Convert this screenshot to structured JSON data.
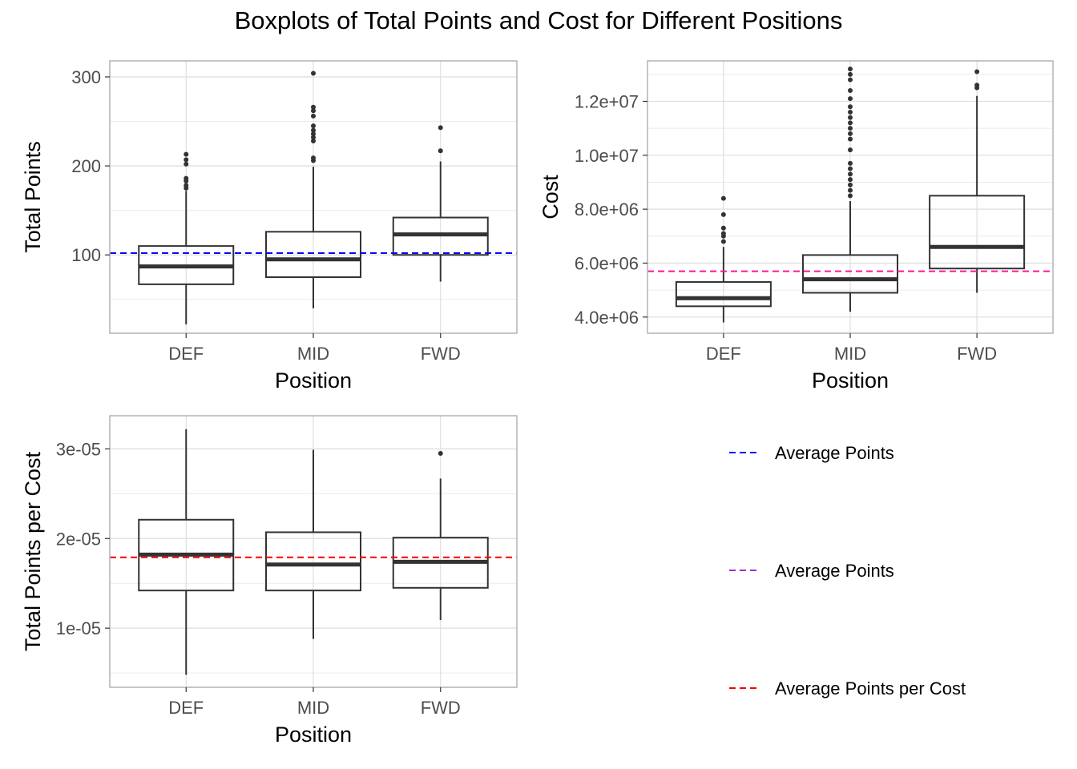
{
  "title": "Boxplots of Total Points and Cost for Different Positions",
  "chart_data": [
    {
      "type": "boxplot",
      "categories": [
        "DEF",
        "MID",
        "FWD"
      ],
      "xlabel": "Position",
      "ylabel": "Total Points",
      "ylim": [
        12,
        318
      ],
      "yticks": [
        100,
        200,
        300
      ],
      "ytick_labels": [
        "100",
        "200",
        "300"
      ],
      "minor_gridlines": [
        50,
        150,
        250
      ],
      "boxes": [
        {
          "category": "DEF",
          "whisker_low": 22,
          "q1": 67,
          "median": 87,
          "q3": 110,
          "whisker_high": 172,
          "outliers": [
            175,
            178,
            183,
            186,
            202,
            207,
            213
          ]
        },
        {
          "category": "MID",
          "whisker_low": 40,
          "q1": 75,
          "median": 95,
          "q3": 126,
          "whisker_high": 199,
          "outliers": [
            206,
            209,
            228,
            232,
            236,
            240,
            245,
            256,
            262,
            266,
            304
          ]
        },
        {
          "category": "FWD",
          "whisker_low": 70,
          "q1": 100,
          "median": 123,
          "q3": 142,
          "whisker_high": 205,
          "outliers": [
            217,
            243
          ]
        }
      ],
      "reference_line": {
        "value": 102,
        "color": "#0000ff",
        "legend": "Average Points"
      }
    },
    {
      "type": "boxplot",
      "categories": [
        "DEF",
        "MID",
        "FWD"
      ],
      "xlabel": "Position",
      "ylabel": "Cost",
      "ylim": [
        3400000,
        13500000
      ],
      "yticks": [
        4000000,
        6000000,
        8000000,
        10000000,
        12000000
      ],
      "ytick_labels": [
        "4.0e+06",
        "6.0e+06",
        "8.0e+06",
        "1.0e+07",
        "1.2e+07"
      ],
      "minor_gridlines": [
        5000000,
        7000000,
        9000000,
        11000000,
        13000000
      ],
      "boxes": [
        {
          "category": "DEF",
          "whisker_low": 3800000,
          "q1": 4400000,
          "median": 4700000,
          "q3": 5300000,
          "whisker_high": 6600000,
          "outliers": [
            6800000,
            7000000,
            7100000,
            7300000,
            7800000,
            8400000
          ]
        },
        {
          "category": "MID",
          "whisker_low": 4200000,
          "q1": 4900000,
          "median": 5400000,
          "q3": 6300000,
          "whisker_high": 8300000,
          "outliers": [
            8500000,
            8700000,
            8900000,
            9100000,
            9300000,
            9500000,
            9700000,
            10200000,
            10600000,
            10800000,
            11000000,
            11200000,
            11400000,
            11600000,
            11800000,
            12100000,
            12400000,
            12800000,
            13000000,
            13200000
          ]
        },
        {
          "category": "FWD",
          "whisker_low": 4900000,
          "q1": 5800000,
          "median": 6600000,
          "q3": 8500000,
          "whisker_high": 12200000,
          "outliers": [
            12500000,
            12600000,
            13100000
          ]
        }
      ],
      "reference_line": {
        "value": 5700000,
        "color": "#ff1493",
        "legend": "Average Points"
      }
    },
    {
      "type": "boxplot",
      "categories": [
        "DEF",
        "MID",
        "FWD"
      ],
      "xlabel": "Position",
      "ylabel": "Total Points per Cost",
      "ylim": [
        3.4e-06,
        3.37e-05
      ],
      "yticks": [
        1e-05,
        2e-05,
        3e-05
      ],
      "ytick_labels": [
        "1e-05",
        "2e-05",
        "3e-05"
      ],
      "minor_gridlines": [
        5e-06,
        1.5e-05,
        2.5e-05
      ],
      "boxes": [
        {
          "category": "DEF",
          "whisker_low": 4.8e-06,
          "q1": 1.42e-05,
          "median": 1.82e-05,
          "q3": 2.21e-05,
          "whisker_high": 3.22e-05,
          "outliers": []
        },
        {
          "category": "MID",
          "whisker_low": 8.8e-06,
          "q1": 1.42e-05,
          "median": 1.71e-05,
          "q3": 2.07e-05,
          "whisker_high": 2.99e-05,
          "outliers": []
        },
        {
          "category": "FWD",
          "whisker_low": 1.09e-05,
          "q1": 1.45e-05,
          "median": 1.74e-05,
          "q3": 2.01e-05,
          "whisker_high": 2.67e-05,
          "outliers": [
            2.95e-05
          ]
        }
      ],
      "reference_line": {
        "value": 1.79e-05,
        "color": "#ff0000",
        "legend": "Average Points per Cost"
      }
    }
  ],
  "legend": [
    {
      "label": "Average Points",
      "color": "#0000ff"
    },
    {
      "label": "Average Points",
      "color": "#9932cc"
    },
    {
      "label": "Average Points per Cost",
      "color": "#ff0000"
    }
  ]
}
